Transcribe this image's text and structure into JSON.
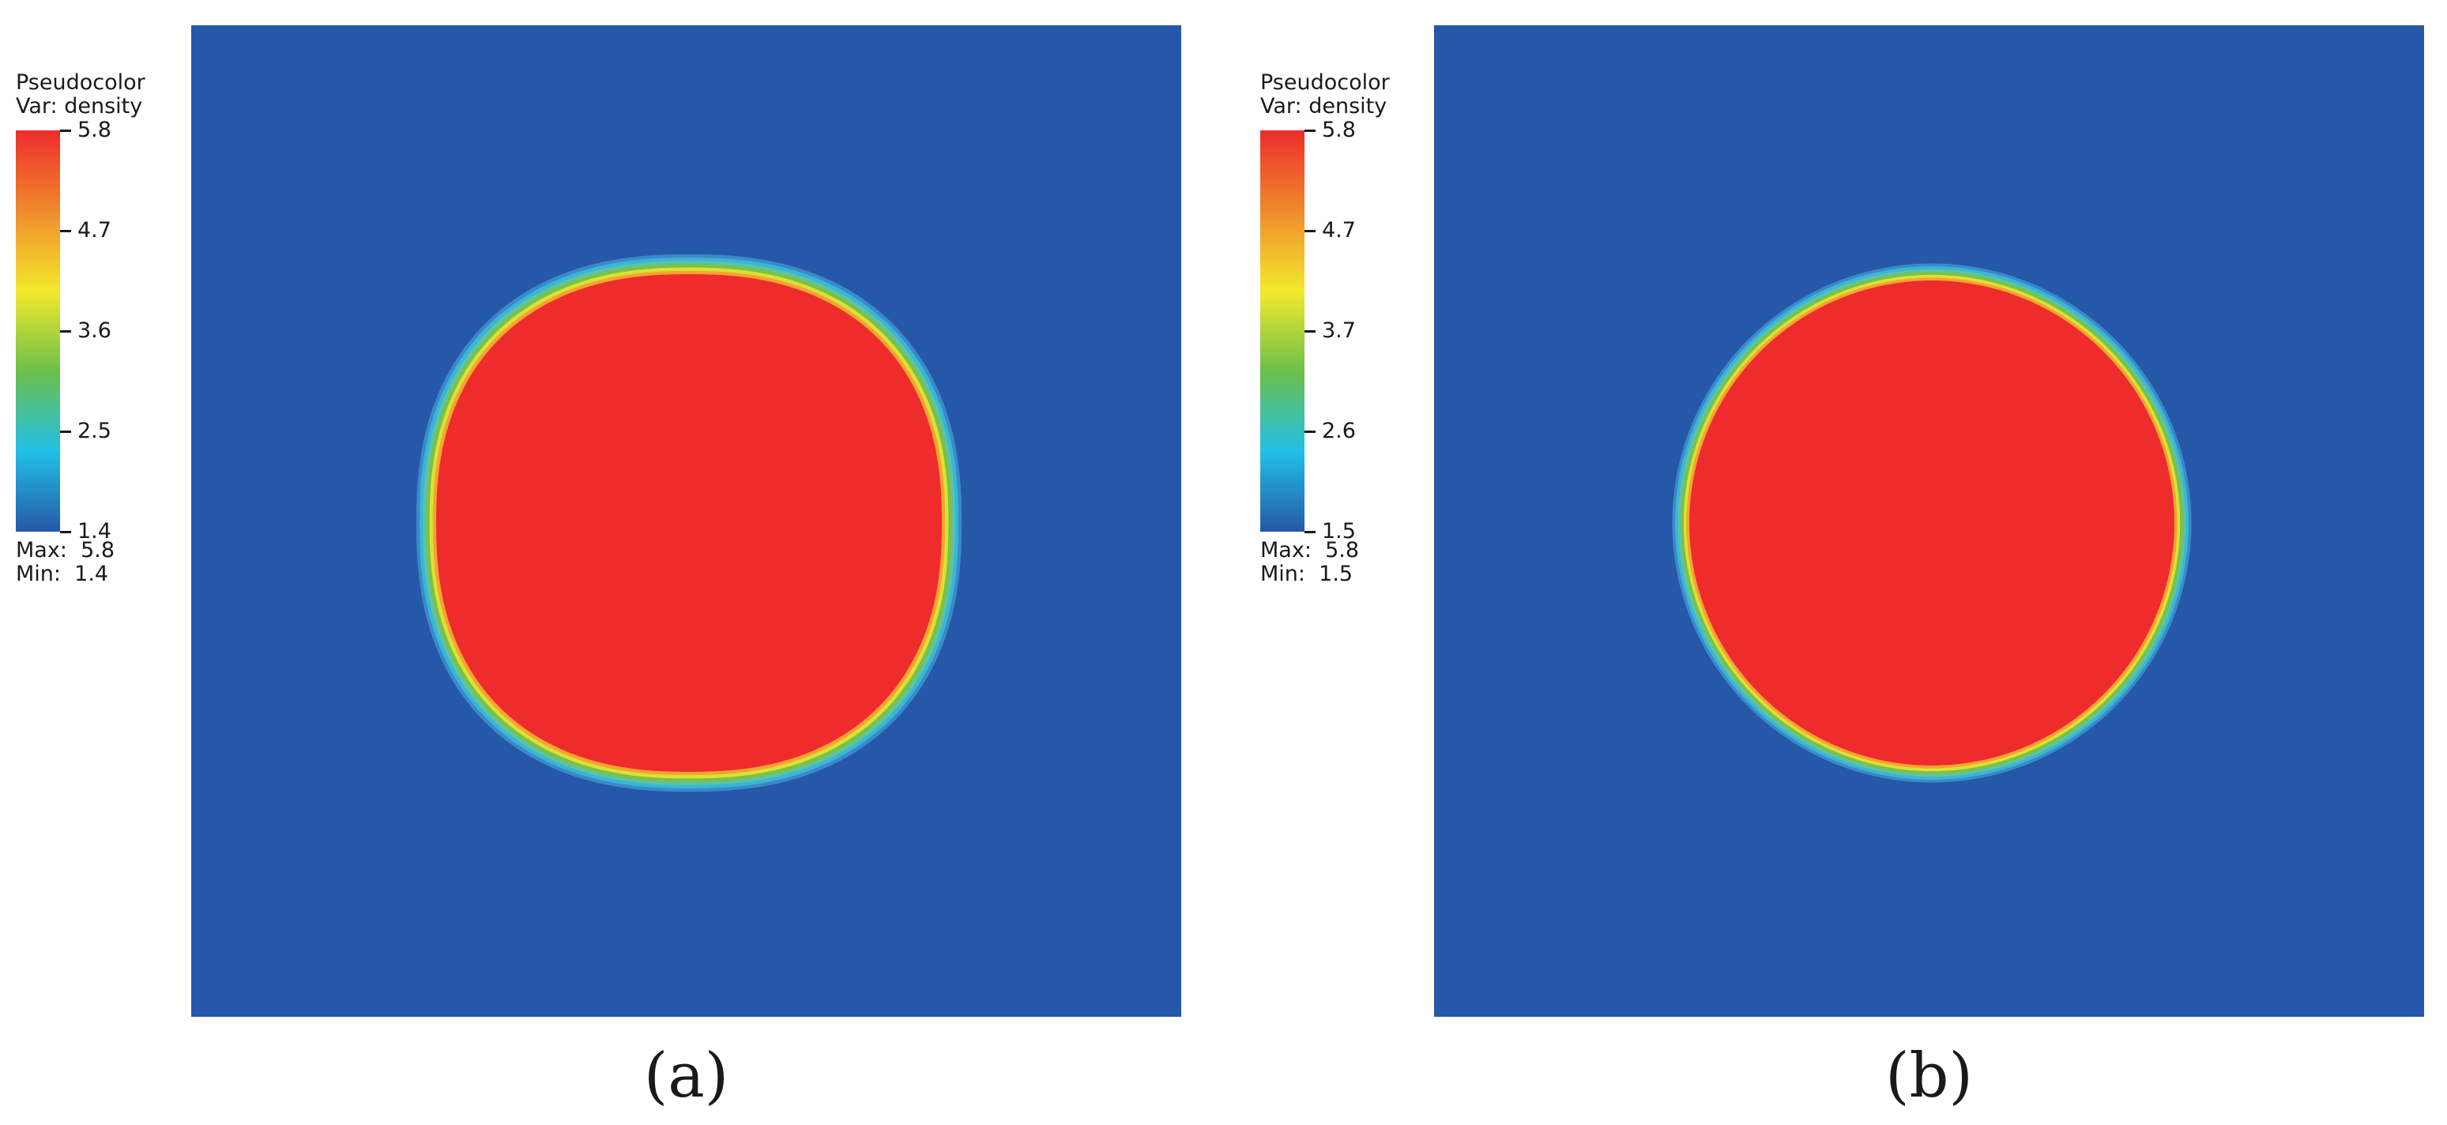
{
  "colormap": {
    "stops": [
      "#2558a8",
      "#22bfe8",
      "#6cc04a",
      "#f3e92c",
      "#f08a2c",
      "#ee2c2c"
    ],
    "background_color": "#2558a8",
    "disk_color": "#ee2c2c"
  },
  "chart_data": [
    {
      "type": "heatmap",
      "panel_label": "(a)",
      "legend": {
        "title": "Pseudocolor",
        "variable": "Var: density",
        "ticks": [
          "5.8",
          "4.7",
          "3.6",
          "2.5",
          "1.4"
        ],
        "max_text": "Max:  5.8",
        "min_text": "Min:  1.4"
      },
      "field": {
        "variable": "density",
        "min": 1.4,
        "max": 5.8,
        "background_value": 1.4,
        "disk_value": 5.8,
        "shape": "rounded square with bulged corners"
      }
    },
    {
      "type": "heatmap",
      "panel_label": "(b)",
      "legend": {
        "title": "Pseudocolor",
        "variable": "Var: density",
        "ticks": [
          "5.8",
          "4.7",
          "3.7",
          "2.6",
          "1.5"
        ],
        "max_text": "Max:  5.8",
        "min_text": "Min:  1.5"
      },
      "field": {
        "variable": "density",
        "min": 1.5,
        "max": 5.8,
        "background_value": 1.5,
        "disk_value": 5.8,
        "shape": "circle"
      }
    }
  ]
}
